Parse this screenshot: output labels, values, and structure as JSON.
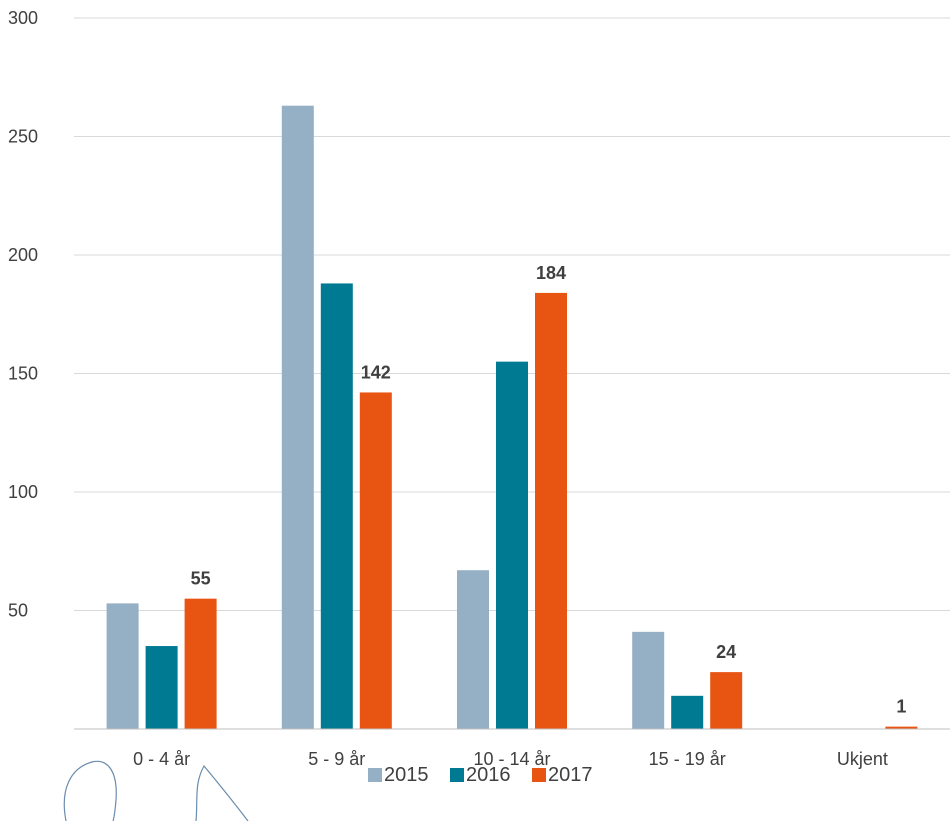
{
  "chart_data": {
    "type": "bar",
    "categories": [
      "0 - 4 år",
      "5 - 9 år",
      "10 - 14 år",
      "15 - 19 år",
      "Ukjent"
    ],
    "series": [
      {
        "name": "2015",
        "color": "#95afc4",
        "values": [
          53,
          263,
          67,
          41,
          0
        ]
      },
      {
        "name": "2016",
        "color": "#007a92",
        "values": [
          35,
          188,
          155,
          14,
          0
        ]
      },
      {
        "name": "2017",
        "color": "#e85412",
        "values": [
          55,
          142,
          184,
          24,
          1
        ]
      }
    ],
    "data_labels": {
      "series": "2017",
      "values": [
        "55",
        "142",
        "184",
        "24",
        "1"
      ]
    },
    "yticks": [
      "50",
      "100",
      "150",
      "200",
      "250",
      "300"
    ],
    "ylim": [
      0,
      300
    ],
    "grid": true,
    "legend_position": "bottom",
    "title": "",
    "xlabel": "",
    "ylabel": ""
  }
}
